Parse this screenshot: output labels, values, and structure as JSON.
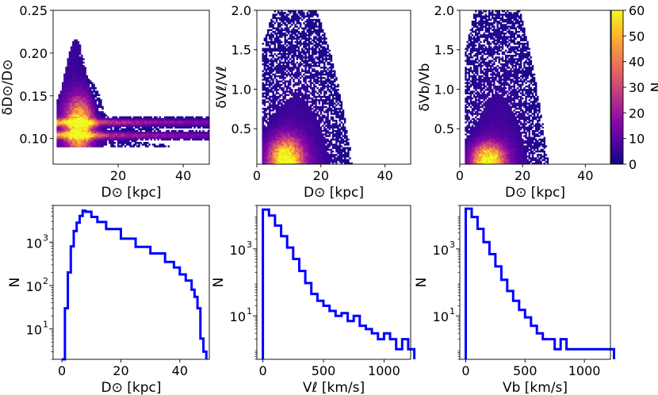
{
  "chart_data": [
    {
      "id": "hist2d-dist-err",
      "type": "heatmap",
      "xlabel": "D⊙ [kpc]",
      "ylabel": "δD⊙/D⊙",
      "xlim": [
        0,
        48
      ],
      "ylim": [
        0.07,
        0.25
      ],
      "xticks": [
        "20",
        "40"
      ],
      "xtick_values": [
        20,
        40
      ],
      "yticks": [
        "0.10",
        "0.15",
        "0.20",
        "0.25"
      ],
      "ytick_values": [
        0.1,
        0.15,
        0.2,
        0.25
      ]
    },
    {
      "id": "hist2d-vl-err",
      "type": "heatmap",
      "xlabel": "D⊙ [kpc]",
      "ylabel": "δVℓ/Vℓ",
      "xlim": [
        0,
        48
      ],
      "ylim": [
        0.05,
        2.0
      ],
      "xticks": [
        "0",
        "20",
        "40"
      ],
      "xtick_values": [
        0,
        20,
        40
      ],
      "yticks": [
        "0.5",
        "1.0",
        "1.5",
        "2.0"
      ],
      "ytick_values": [
        0.5,
        1.0,
        1.5,
        2.0
      ]
    },
    {
      "id": "hist2d-vb-err",
      "type": "heatmap",
      "xlabel": "D⊙ [kpc]",
      "ylabel": "δVb/Vb",
      "xlim": [
        0,
        48
      ],
      "ylim": [
        0.05,
        2.0
      ],
      "xticks": [
        "0",
        "20",
        "40"
      ],
      "xtick_values": [
        0,
        20,
        40
      ],
      "yticks": [
        "0.5",
        "1.0",
        "1.5",
        "2.0"
      ],
      "ytick_values": [
        0.5,
        1.0,
        1.5,
        2.0
      ],
      "colorbar": {
        "label": "N",
        "range": [
          0,
          60
        ],
        "ticks": [
          "0",
          "10",
          "20",
          "30",
          "40",
          "50",
          "60"
        ],
        "tick_values": [
          0,
          10,
          20,
          30,
          40,
          50,
          60
        ],
        "colormap": "plasma"
      }
    },
    {
      "id": "hist-dist",
      "type": "line",
      "style": "step",
      "xlabel": "D⊙ [kpc]",
      "ylabel": "N",
      "log_y": true,
      "xlim": [
        -3,
        50
      ],
      "ylim": [
        2,
        7000
      ],
      "xticks": [
        "0",
        "20",
        "40"
      ],
      "xtick_values": [
        0,
        20,
        40
      ],
      "yticks": [
        "10",
        "10",
        "10"
      ],
      "ytick_exps": [
        "1",
        "2",
        "3"
      ],
      "ytick_values": [
        10,
        100,
        1000
      ],
      "color": "#0000ff",
      "x": [
        0,
        1,
        2,
        3,
        4,
        5,
        6,
        7,
        8,
        10,
        12,
        15,
        20,
        25,
        30,
        35,
        38,
        40,
        42,
        44,
        45,
        46,
        47,
        48
      ],
      "y": [
        2,
        30,
        200,
        800,
        1800,
        2800,
        4000,
        5300,
        5000,
        3800,
        2900,
        2000,
        1200,
        780,
        550,
        350,
        260,
        180,
        130,
        80,
        55,
        30,
        6,
        3
      ]
    },
    {
      "id": "hist-vl",
      "type": "line",
      "style": "step",
      "xlabel": "Vℓ [km/s]",
      "ylabel": "N",
      "log_y": true,
      "xlim": [
        -50,
        1220
      ],
      "ylim": [
        0.5,
        20000
      ],
      "xticks": [
        "0",
        "500",
        "1000"
      ],
      "xtick_values": [
        0,
        500,
        1000
      ],
      "yticks": [
        "10",
        "10"
      ],
      "ytick_exps": [
        "1",
        "3"
      ],
      "ytick_values": [
        10,
        1000
      ],
      "color": "#0000ff",
      "x": [
        0,
        50,
        100,
        150,
        200,
        250,
        300,
        350,
        400,
        450,
        500,
        550,
        600,
        650,
        700,
        750,
        800,
        850,
        900,
        950,
        1000,
        1050,
        1100,
        1150,
        1200
      ],
      "y": [
        15000,
        10000,
        5000,
        2400,
        1100,
        500,
        220,
        95,
        45,
        28,
        20,
        14,
        10,
        12,
        7,
        10,
        5,
        4,
        3,
        2,
        3,
        2,
        1,
        2,
        1
      ]
    },
    {
      "id": "hist-vb",
      "type": "line",
      "style": "step",
      "xlabel": "Vb [km/s]",
      "ylabel": "N",
      "log_y": true,
      "xlim": [
        -50,
        1220
      ],
      "ylim": [
        0.5,
        20000
      ],
      "xticks": [
        "0",
        "500",
        "1000"
      ],
      "xtick_values": [
        0,
        500,
        1000
      ],
      "yticks": [
        "10",
        "10"
      ],
      "ytick_exps": [
        "1",
        "3"
      ],
      "ytick_values": [
        10,
        1000
      ],
      "color": "#0000ff",
      "x": [
        0,
        50,
        100,
        150,
        200,
        250,
        300,
        350,
        400,
        450,
        500,
        550,
        600,
        650,
        700,
        750,
        800,
        850,
        900,
        950,
        1000,
        1050,
        1100,
        1150,
        1200
      ],
      "y": [
        16000,
        9000,
        4000,
        1600,
        700,
        300,
        120,
        55,
        28,
        15,
        9,
        5,
        3,
        2,
        2,
        1,
        2,
        1,
        1,
        1,
        1,
        1,
        1,
        1,
        1
      ]
    }
  ]
}
